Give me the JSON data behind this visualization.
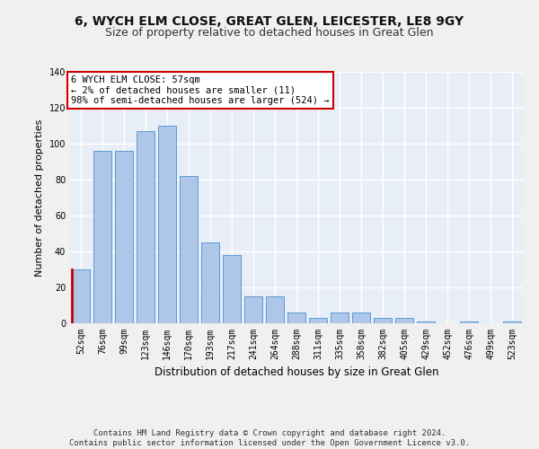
{
  "title1": "6, WYCH ELM CLOSE, GREAT GLEN, LEICESTER, LE8 9GY",
  "title2": "Size of property relative to detached houses in Great Glen",
  "xlabel": "Distribution of detached houses by size in Great Glen",
  "ylabel": "Number of detached properties",
  "categories": [
    "52sqm",
    "76sqm",
    "99sqm",
    "123sqm",
    "146sqm",
    "170sqm",
    "193sqm",
    "217sqm",
    "241sqm",
    "264sqm",
    "288sqm",
    "311sqm",
    "335sqm",
    "358sqm",
    "382sqm",
    "405sqm",
    "429sqm",
    "452sqm",
    "476sqm",
    "499sqm",
    "523sqm"
  ],
  "values": [
    30,
    96,
    96,
    107,
    110,
    82,
    45,
    38,
    15,
    15,
    6,
    3,
    6,
    6,
    3,
    3,
    1,
    0,
    1,
    0,
    1
  ],
  "bar_color": "#aec6e8",
  "bar_edge_color": "#5b9bd5",
  "annotation_text": "6 WYCH ELM CLOSE: 57sqm\n← 2% of detached houses are smaller (11)\n98% of semi-detached houses are larger (524) →",
  "annotation_box_color": "#ffffff",
  "annotation_box_edge_color": "#cc0000",
  "ylim": [
    0,
    140
  ],
  "yticks": [
    0,
    20,
    40,
    60,
    80,
    100,
    120,
    140
  ],
  "plot_bg_color": "#e8eef7",
  "grid_color": "#ffffff",
  "fig_bg_color": "#f0f0f0",
  "footer_line1": "Contains HM Land Registry data © Crown copyright and database right 2024.",
  "footer_line2": "Contains public sector information licensed under the Open Government Licence v3.0.",
  "title1_fontsize": 10,
  "title2_fontsize": 9,
  "xlabel_fontsize": 8.5,
  "ylabel_fontsize": 8,
  "tick_fontsize": 7,
  "annotation_fontsize": 7.5,
  "footer_fontsize": 6.5
}
